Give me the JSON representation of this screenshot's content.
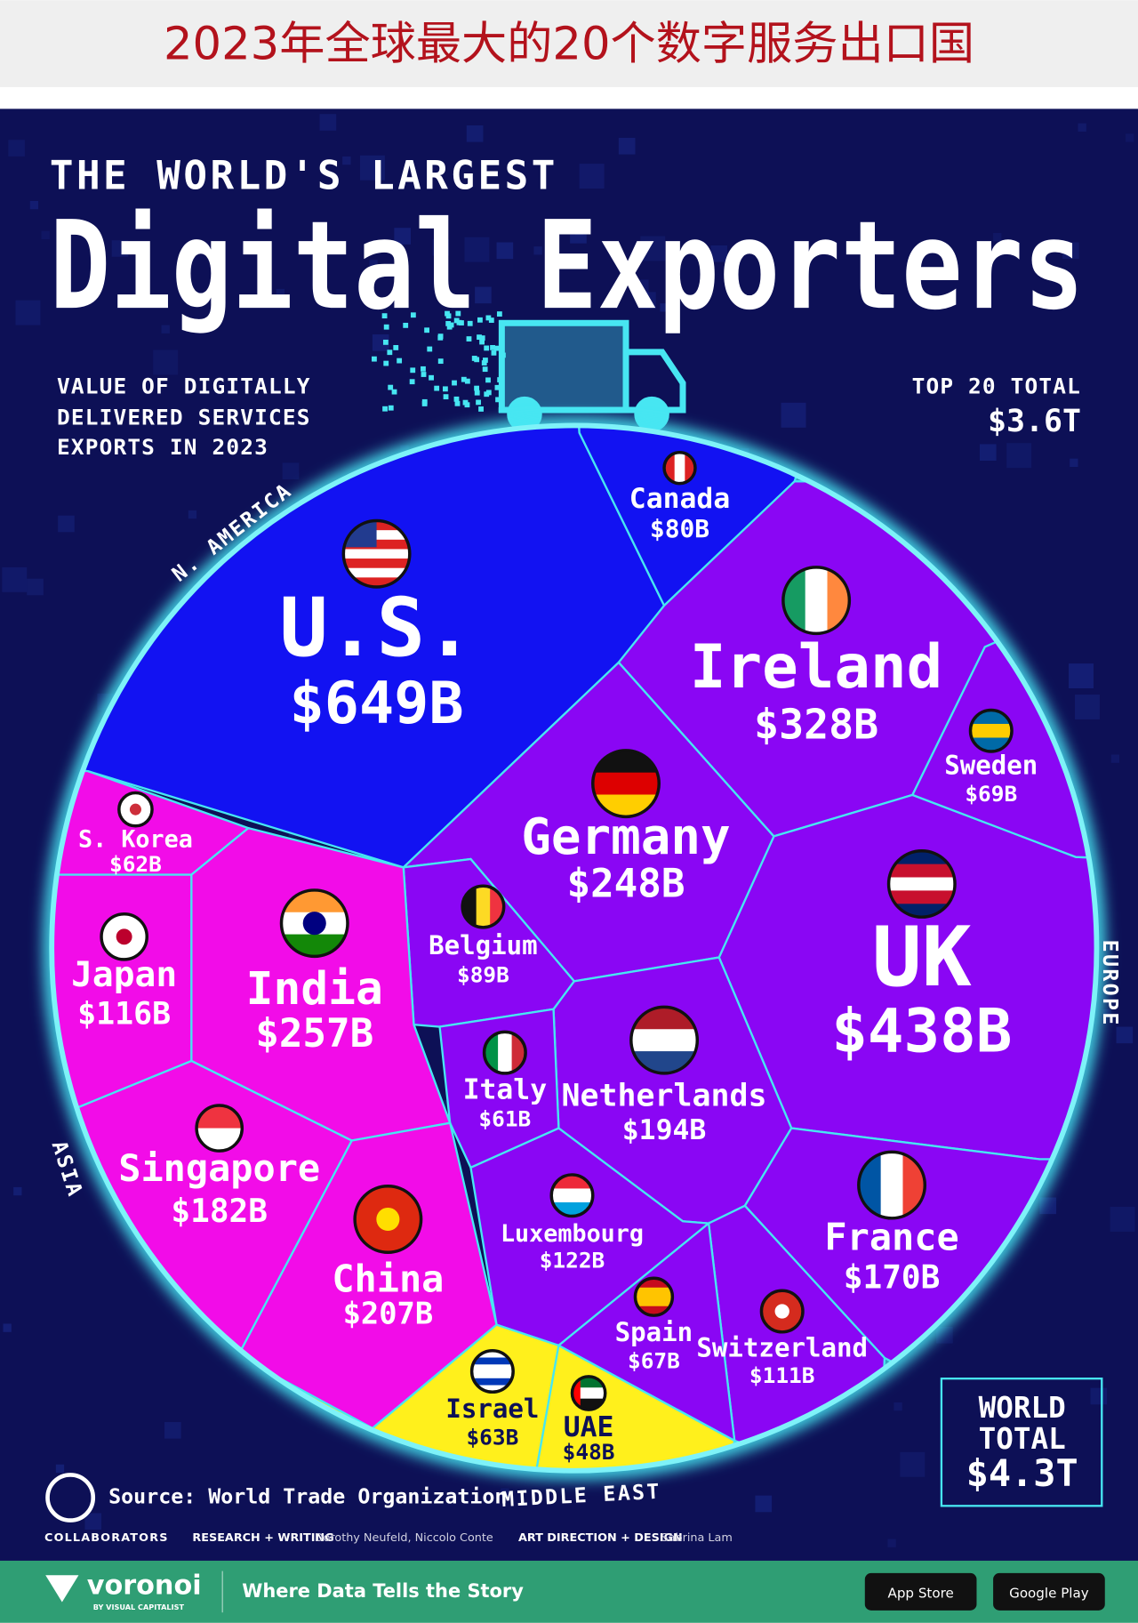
{
  "banner_title": "2023年全球最大的20个数字服务出口国",
  "chart_data": {
    "type": "voronoi-treemap",
    "title_top": "THE WORLD'S LARGEST",
    "title": "Digital Exporters",
    "subtitle": [
      "VALUE OF DIGITALLY",
      "DELIVERED SERVICES",
      "EXPORTS IN 2023"
    ],
    "top_total": {
      "label": "TOP 20 TOTAL",
      "value_label": "$3.6T"
    },
    "world_total": {
      "label": [
        "WORLD",
        "TOTAL"
      ],
      "value_label": "$4.3T"
    },
    "series": [
      {
        "name": "N. AMERICA",
        "color": "#1212f2",
        "categories": [
          "U.S.",
          "Canada"
        ],
        "values": [
          649,
          80
        ],
        "value_labels": [
          "$649B",
          "$80B"
        ]
      },
      {
        "name": "EUROPE",
        "color": "#8a06f4",
        "categories": [
          "Ireland",
          "UK",
          "Germany",
          "Netherlands",
          "France",
          "Luxembourg",
          "Switzerland",
          "Belgium",
          "Sweden",
          "Spain",
          "Italy"
        ],
        "values": [
          328,
          438,
          248,
          194,
          170,
          122,
          111,
          89,
          69,
          67,
          61
        ],
        "value_labels": [
          "$328B",
          "$438B",
          "$248B",
          "$194B",
          "$170B",
          "$122B",
          "$111B",
          "$89B",
          "$69B",
          "$67B",
          "$61B"
        ]
      },
      {
        "name": "ASIA",
        "color": "#f20ce8",
        "categories": [
          "India",
          "China",
          "Singapore",
          "Japan",
          "S. Korea"
        ],
        "values": [
          257,
          207,
          182,
          116,
          62
        ],
        "value_labels": [
          "$257B",
          "$207B",
          "$182B",
          "$116B",
          "$62B"
        ]
      },
      {
        "name": "MIDDLE EAST",
        "color": "#fff01c",
        "categories": [
          "Israel",
          "UAE"
        ],
        "values": [
          63,
          48
        ],
        "value_labels": [
          "$63B",
          "$48B"
        ]
      }
    ],
    "source": "Source: World Trade Organization"
  },
  "credits": {
    "collaborators": "COLLABORATORS",
    "research_label": "RESEARCH + WRITING",
    "research_names": "Dorothy Neufeld, Niccolo Conte",
    "design_label": "ART DIRECTION + DESIGN",
    "design_names": "Sabrina Lam"
  },
  "footer": {
    "brand": "voronoi",
    "brand_sub": "BY VISUAL CAPITALIST",
    "tagline": "Where Data Tells the Story",
    "buttons": [
      "App Store",
      "Google Play"
    ]
  }
}
